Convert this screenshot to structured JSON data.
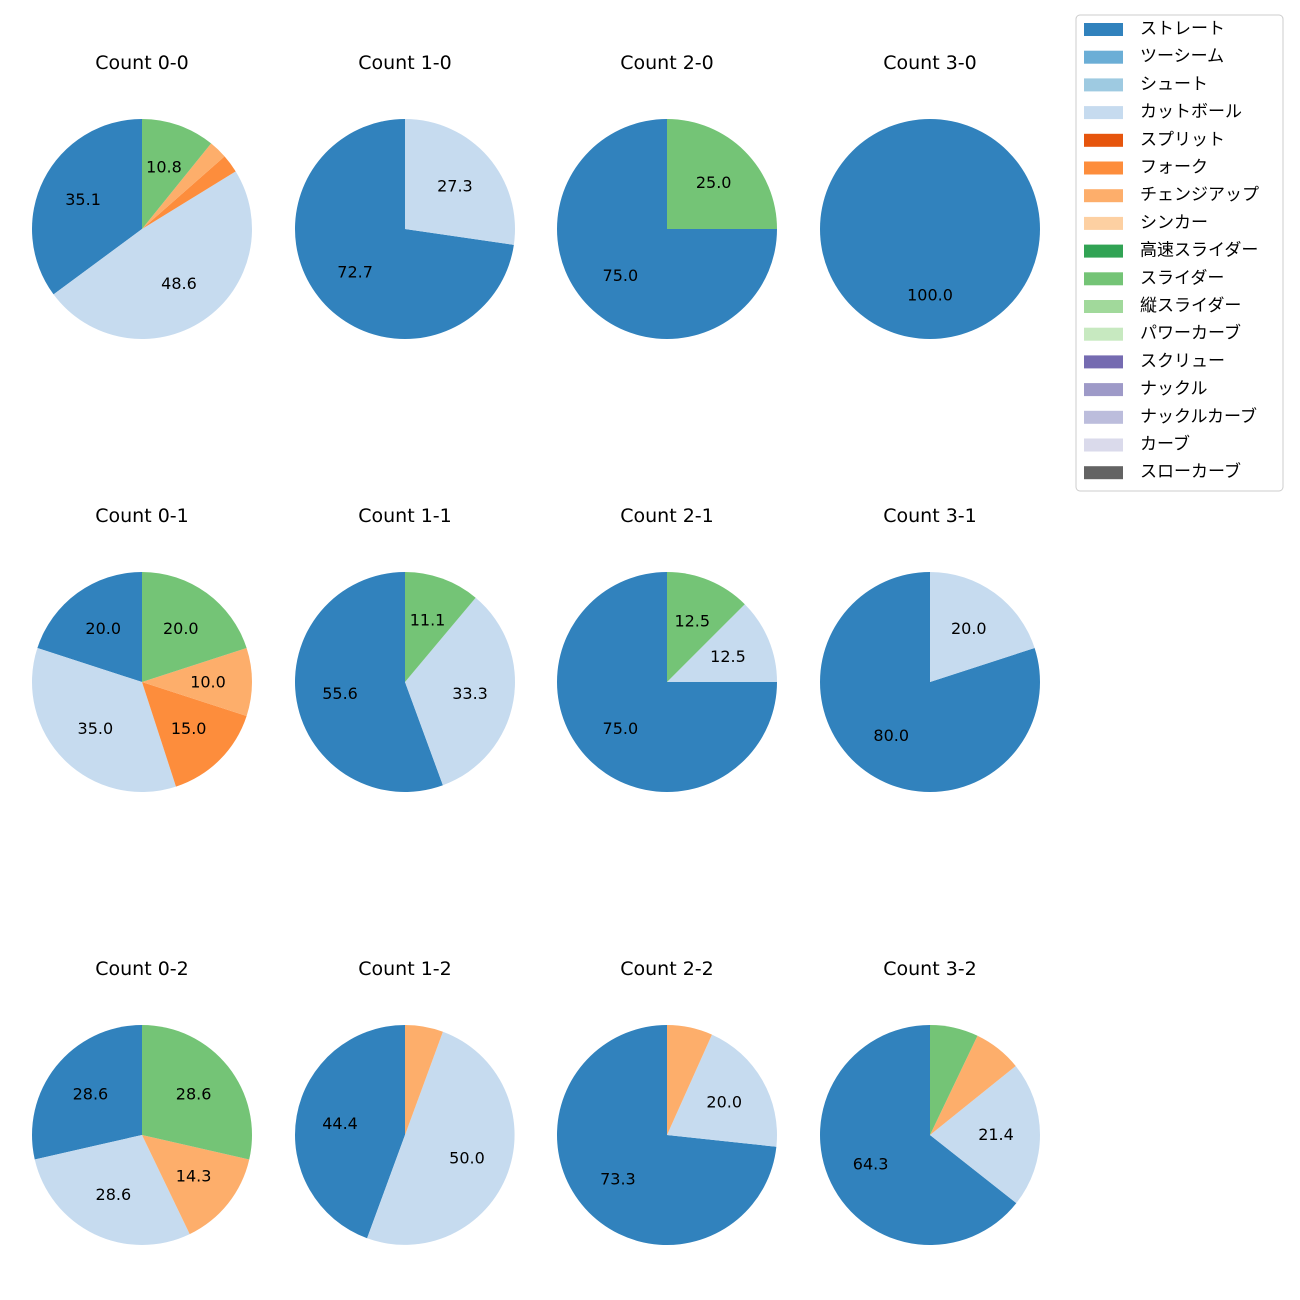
{
  "legend": {
    "items": [
      {
        "name": "ストレート",
        "color": "#3182bd"
      },
      {
        "name": "ツーシーム",
        "color": "#6baed6"
      },
      {
        "name": "シュート",
        "color": "#9ecae1"
      },
      {
        "name": "カットボール",
        "color": "#c6dbef"
      },
      {
        "name": "スプリット",
        "color": "#e6550d"
      },
      {
        "name": "フォーク",
        "color": "#fd8d3c"
      },
      {
        "name": "チェンジアップ",
        "color": "#fdae6b"
      },
      {
        "name": "シンカー",
        "color": "#fdd0a2"
      },
      {
        "name": "高速スライダー",
        "color": "#31a354"
      },
      {
        "name": "スライダー",
        "color": "#74c476"
      },
      {
        "name": "縦スライダー",
        "color": "#a1d99b"
      },
      {
        "name": "パワーカーブ",
        "color": "#c7e9c0"
      },
      {
        "name": "スクリュー",
        "color": "#756bb1"
      },
      {
        "name": "ナックル",
        "color": "#9e9ac8"
      },
      {
        "name": "ナックルカーブ",
        "color": "#bcbddc"
      },
      {
        "name": "カーブ",
        "color": "#dadaeb"
      },
      {
        "name": "スローカーブ",
        "color": "#636363"
      }
    ]
  },
  "chart_data": [
    {
      "type": "pie",
      "title": "Count 0-0",
      "slices": [
        {
          "pitch": "ストレート",
          "value": 35.1,
          "label": "35.1"
        },
        {
          "pitch": "カットボール",
          "value": 48.6,
          "label": "48.6"
        },
        {
          "pitch": "フォーク",
          "value": 2.7,
          "label": ""
        },
        {
          "pitch": "チェンジアップ",
          "value": 2.7,
          "label": ""
        },
        {
          "pitch": "スライダー",
          "value": 10.8,
          "label": "10.8"
        }
      ]
    },
    {
      "type": "pie",
      "title": "Count 1-0",
      "slices": [
        {
          "pitch": "ストレート",
          "value": 72.7,
          "label": "72.7"
        },
        {
          "pitch": "カットボール",
          "value": 27.3,
          "label": "27.3"
        }
      ]
    },
    {
      "type": "pie",
      "title": "Count 2-0",
      "slices": [
        {
          "pitch": "ストレート",
          "value": 75.0,
          "label": "75.0"
        },
        {
          "pitch": "スライダー",
          "value": 25.0,
          "label": "25.0"
        }
      ]
    },
    {
      "type": "pie",
      "title": "Count 3-0",
      "slices": [
        {
          "pitch": "ストレート",
          "value": 100.0,
          "label": "100.0"
        }
      ]
    },
    {
      "type": "pie",
      "title": "Count 0-1",
      "slices": [
        {
          "pitch": "ストレート",
          "value": 20.0,
          "label": "20.0"
        },
        {
          "pitch": "カットボール",
          "value": 35.0,
          "label": "35.0"
        },
        {
          "pitch": "フォーク",
          "value": 15.0,
          "label": "15.0"
        },
        {
          "pitch": "チェンジアップ",
          "value": 10.0,
          "label": "10.0"
        },
        {
          "pitch": "スライダー",
          "value": 20.0,
          "label": "20.0"
        }
      ]
    },
    {
      "type": "pie",
      "title": "Count 1-1",
      "slices": [
        {
          "pitch": "ストレート",
          "value": 55.6,
          "label": "55.6"
        },
        {
          "pitch": "カットボール",
          "value": 33.3,
          "label": "33.3"
        },
        {
          "pitch": "スライダー",
          "value": 11.1,
          "label": "11.1"
        }
      ]
    },
    {
      "type": "pie",
      "title": "Count 2-1",
      "slices": [
        {
          "pitch": "ストレート",
          "value": 75.0,
          "label": "75.0"
        },
        {
          "pitch": "カットボール",
          "value": 12.5,
          "label": "12.5"
        },
        {
          "pitch": "スライダー",
          "value": 12.5,
          "label": "12.5"
        }
      ]
    },
    {
      "type": "pie",
      "title": "Count 3-1",
      "slices": [
        {
          "pitch": "ストレート",
          "value": 80.0,
          "label": "80.0"
        },
        {
          "pitch": "カットボール",
          "value": 20.0,
          "label": "20.0"
        }
      ]
    },
    {
      "type": "pie",
      "title": "Count 0-2",
      "slices": [
        {
          "pitch": "ストレート",
          "value": 28.6,
          "label": "28.6"
        },
        {
          "pitch": "カットボール",
          "value": 28.6,
          "label": "28.6"
        },
        {
          "pitch": "チェンジアップ",
          "value": 14.3,
          "label": "14.3"
        },
        {
          "pitch": "スライダー",
          "value": 28.6,
          "label": "28.6"
        }
      ]
    },
    {
      "type": "pie",
      "title": "Count 1-2",
      "slices": [
        {
          "pitch": "ストレート",
          "value": 44.4,
          "label": "44.4"
        },
        {
          "pitch": "カットボール",
          "value": 50.0,
          "label": "50.0"
        },
        {
          "pitch": "チェンジアップ",
          "value": 5.6,
          "label": ""
        }
      ]
    },
    {
      "type": "pie",
      "title": "Count 2-2",
      "slices": [
        {
          "pitch": "ストレート",
          "value": 73.3,
          "label": "73.3"
        },
        {
          "pitch": "カットボール",
          "value": 20.0,
          "label": "20.0"
        },
        {
          "pitch": "チェンジアップ",
          "value": 6.7,
          "label": ""
        }
      ]
    },
    {
      "type": "pie",
      "title": "Count 3-2",
      "slices": [
        {
          "pitch": "ストレート",
          "value": 64.3,
          "label": "64.3"
        },
        {
          "pitch": "カットボール",
          "value": 21.4,
          "label": "21.4"
        },
        {
          "pitch": "チェンジアップ",
          "value": 7.1,
          "label": ""
        },
        {
          "pitch": "スライダー",
          "value": 7.1,
          "label": ""
        }
      ]
    }
  ]
}
